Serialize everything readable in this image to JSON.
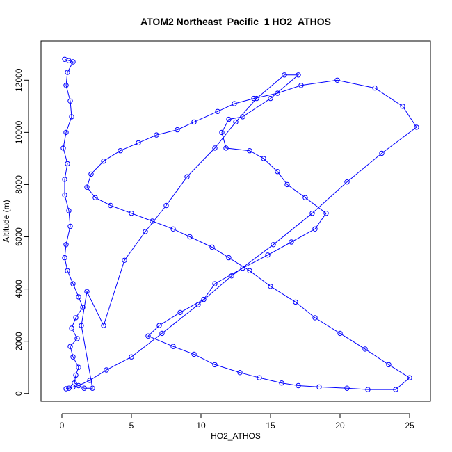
{
  "chart_data": {
    "type": "line",
    "title": "ATOM2 Northeast_Pacific_1 HO2_ATHOS",
    "xlabel": "HO2_ATHOS",
    "ylabel": "Altitude (m)",
    "xlim": [
      -1.5,
      26.5
    ],
    "ylim": [
      -300,
      13500
    ],
    "x_ticks": [
      0,
      5,
      10,
      15,
      20,
      25
    ],
    "x_tick_labels": [
      "0",
      "5",
      "10",
      "15",
      "20",
      "25"
    ],
    "y_ticks": [
      0,
      2000,
      4000,
      6000,
      8000,
      10000,
      12000
    ],
    "y_tick_labels": [
      "0",
      "2000",
      "4000",
      "6000",
      "8000",
      "10000",
      "12000"
    ],
    "grid": false,
    "legend": "none",
    "colors": {
      "series": "#0000ff",
      "axis": "#000000"
    },
    "series": [
      {
        "style": "points-and-lines",
        "x": [
          0.2,
          0.5,
          0.8,
          0.4,
          0.3,
          0.6,
          0.7,
          0.3,
          0.1,
          0.4,
          0.2,
          0.2,
          0.5,
          0.6,
          0.3,
          0.2,
          0.4,
          0.8,
          1.2,
          1.5,
          1.0,
          0.7,
          1.1,
          0.6,
          0.8,
          1.2,
          1.0,
          0.9,
          1.6,
          2.2,
          1.4,
          1.8,
          3.0,
          4.5,
          6.0,
          7.5,
          9.0,
          11.0,
          12.5,
          14.0,
          16.0,
          17.0,
          15.0,
          13.0,
          12.0,
          11.5,
          11.8,
          13.5,
          14.5,
          15.5,
          16.2,
          17.5,
          19.0,
          18.2,
          16.5,
          14.8,
          13.0,
          11.0,
          10.2,
          8.5,
          7.0,
          6.2,
          8.0,
          9.5,
          11.0,
          12.8,
          14.2,
          15.8,
          17.0,
          18.5,
          20.5,
          22.0,
          24.0,
          25.0,
          23.5,
          21.8,
          20.0,
          18.2,
          16.8,
          15.0,
          13.5,
          12.0,
          10.8,
          9.2,
          8.0,
          6.5,
          5.0,
          3.5,
          2.4,
          1.8,
          2.1,
          3.0,
          4.2,
          5.5,
          6.8,
          8.3,
          9.5,
          11.2,
          12.4,
          13.8,
          15.5,
          17.2,
          19.8,
          22.5,
          24.5,
          25.5,
          23.0,
          20.5,
          18.0,
          15.2,
          12.2,
          9.8,
          7.2,
          5.0,
          3.2,
          2.0,
          1.2,
          0.8,
          0.5,
          0.3
        ],
        "y": [
          12800,
          12750,
          12700,
          12300,
          11800,
          11200,
          10600,
          10000,
          9400,
          8800,
          8200,
          7600,
          7000,
          6400,
          5700,
          5200,
          4700,
          4200,
          3700,
          3300,
          2900,
          2500,
          2100,
          1800,
          1400,
          1000,
          700,
          400,
          200,
          200,
          2600,
          3900,
          2600,
          5100,
          6200,
          7200,
          8300,
          9400,
          10400,
          11300,
          12200,
          12200,
          11300,
          10600,
          10500,
          10000,
          9400,
          9300,
          9000,
          8500,
          8000,
          7500,
          6900,
          6300,
          5800,
          5300,
          4800,
          4200,
          3600,
          3100,
          2600,
          2200,
          1800,
          1500,
          1100,
          800,
          600,
          400,
          300,
          250,
          200,
          150,
          150,
          600,
          1100,
          1700,
          2300,
          2900,
          3500,
          4100,
          4700,
          5200,
          5600,
          6000,
          6300,
          6600,
          6900,
          7200,
          7500,
          7900,
          8400,
          8900,
          9300,
          9600,
          9900,
          10100,
          10400,
          10800,
          11100,
          11300,
          11500,
          11800,
          12000,
          11700,
          11000,
          10200,
          9200,
          8100,
          6900,
          5700,
          4500,
          3400,
          2300,
          1400,
          900,
          500,
          300,
          250,
          200,
          180
        ]
      }
    ]
  }
}
